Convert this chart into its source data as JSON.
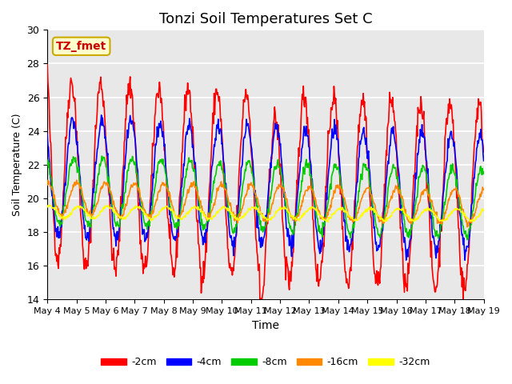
{
  "title": "Tonzi Soil Temperatures Set C",
  "xlabel": "Time",
  "ylabel": "Soil Temperature (C)",
  "ylim": [
    14,
    30
  ],
  "yticks": [
    14,
    16,
    18,
    20,
    22,
    24,
    26,
    28,
    30
  ],
  "annotation_text": "TZ_fmet",
  "annotation_color": "#cc0000",
  "annotation_bg": "#ffffcc",
  "annotation_border": "#ccaa00",
  "colors": {
    "-2cm": "#ff0000",
    "-4cm": "#0000ff",
    "-8cm": "#00cc00",
    "-16cm": "#ff8800",
    "-32cm": "#ffff00"
  },
  "legend_order": [
    "-2cm",
    "-4cm",
    "-8cm",
    "-16cm",
    "-32cm"
  ],
  "background_color": "#e8e8e8",
  "grid_color": "#ffffff",
  "n_days": 15,
  "n_points": 744,
  "start_day": 4
}
